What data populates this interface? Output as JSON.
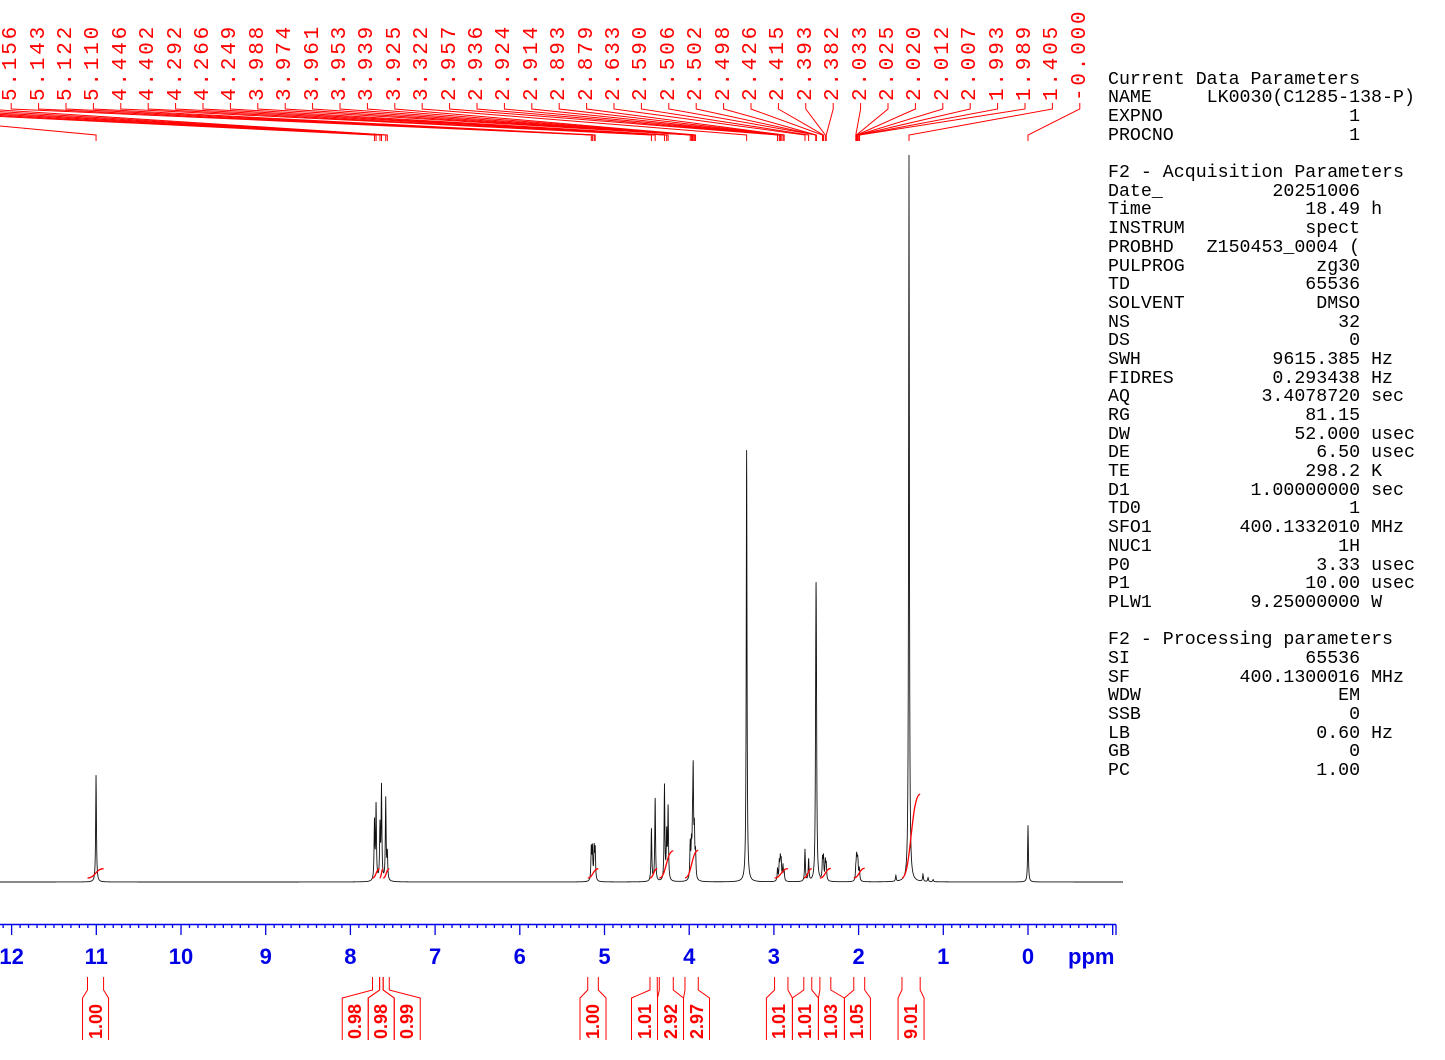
{
  "chart_data": {
    "type": "line",
    "title": "",
    "xlabel": "ppm",
    "ylabel": "",
    "xlim": [
      12.137,
      -1.039
    ],
    "x_reversed": true,
    "grid": false,
    "legend": null,
    "colors": {
      "trace": "#111111",
      "annotation": "#ff0000",
      "axis": "#0000e6"
    },
    "axis": {
      "ticks": [
        "12",
        "11",
        "10",
        "9",
        "8",
        "7",
        "6",
        "5",
        "4",
        "3",
        "2",
        "1",
        "0"
      ],
      "tick_values": [
        12,
        11,
        10,
        9,
        8,
        7,
        6,
        5,
        4,
        3,
        2,
        1,
        0
      ],
      "unit_label": "ppm"
    },
    "peaks": [
      {
        "ppm": 11.003,
        "intensity": 14.7
      },
      {
        "ppm": 7.716,
        "intensity": 8.0
      },
      {
        "ppm": 7.697,
        "intensity": 10.2
      },
      {
        "ppm": 7.651,
        "intensity": 7.2
      },
      {
        "ppm": 7.633,
        "intensity": 12.8
      },
      {
        "ppm": 7.583,
        "intensity": 11.3
      },
      {
        "ppm": 7.564,
        "intensity": 3.6
      },
      {
        "ppm": 5.156,
        "intensity": 4.4
      },
      {
        "ppm": 5.143,
        "intensity": 4.3
      },
      {
        "ppm": 5.122,
        "intensity": 4.3
      },
      {
        "ppm": 5.11,
        "intensity": 4.2
      },
      {
        "ppm": 4.446,
        "intensity": 7.2
      },
      {
        "ppm": 4.402,
        "intensity": 11.4
      },
      {
        "ppm": 4.292,
        "intensity": 13.1
      },
      {
        "ppm": 4.266,
        "intensity": 6.2
      },
      {
        "ppm": 4.249,
        "intensity": 9.9
      },
      {
        "ppm": 3.988,
        "intensity": 4.8
      },
      {
        "ppm": 3.974,
        "intensity": 4.1
      },
      {
        "ppm": 3.961,
        "intensity": 5.5
      },
      {
        "ppm": 3.953,
        "intensity": 13.8
      },
      {
        "ppm": 3.939,
        "intensity": 6.2
      },
      {
        "ppm": 3.925,
        "intensity": 3.4
      },
      {
        "ppm": 3.322,
        "intensity": 59.4
      },
      {
        "ppm": 2.957,
        "intensity": 1.7
      },
      {
        "ppm": 2.936,
        "intensity": 2.5
      },
      {
        "ppm": 2.924,
        "intensity": 2.8
      },
      {
        "ppm": 2.914,
        "intensity": 2.6
      },
      {
        "ppm": 2.893,
        "intensity": 2.1
      },
      {
        "ppm": 2.879,
        "intensity": 1.2
      },
      {
        "ppm": 2.633,
        "intensity": 4.4
      },
      {
        "ppm": 2.59,
        "intensity": 3.0
      },
      {
        "ppm": 2.506,
        "intensity": 12.6
      },
      {
        "ppm": 2.502,
        "intensity": 25.1
      },
      {
        "ppm": 2.498,
        "intensity": 12.6
      },
      {
        "ppm": 2.426,
        "intensity": 2.8
      },
      {
        "ppm": 2.415,
        "intensity": 3.0
      },
      {
        "ppm": 2.393,
        "intensity": 2.6
      },
      {
        "ppm": 2.382,
        "intensity": 2.2
      },
      {
        "ppm": 2.033,
        "intensity": 1.4
      },
      {
        "ppm": 2.025,
        "intensity": 2.2
      },
      {
        "ppm": 2.02,
        "intensity": 1.7
      },
      {
        "ppm": 2.012,
        "intensity": 1.9
      },
      {
        "ppm": 2.007,
        "intensity": 1.5
      },
      {
        "ppm": 1.993,
        "intensity": 1.0
      },
      {
        "ppm": 1.989,
        "intensity": 0.8
      },
      {
        "ppm": 1.405,
        "intensity": 100.0
      },
      {
        "ppm": 0.0,
        "intensity": 7.8
      }
    ],
    "minor_peaks": [
      {
        "ppm": 1.56,
        "intensity": 0.8
      },
      {
        "ppm": 1.24,
        "intensity": 1.0
      },
      {
        "ppm": 1.18,
        "intensity": 0.55
      },
      {
        "ppm": 1.12,
        "intensity": 0.3
      }
    ],
    "peak_labels": [
      {
        "label": "5.156",
        "ppm": 5.156
      },
      {
        "label": "5.143",
        "ppm": 5.143
      },
      {
        "label": "5.122",
        "ppm": 5.122
      },
      {
        "label": "5.110",
        "ppm": 5.11
      },
      {
        "label": "4.446",
        "ppm": 4.446
      },
      {
        "label": "4.402",
        "ppm": 4.402
      },
      {
        "label": "4.292",
        "ppm": 4.292
      },
      {
        "label": "4.266",
        "ppm": 4.266
      },
      {
        "label": "4.249",
        "ppm": 4.249
      },
      {
        "label": "3.988",
        "ppm": 3.988
      },
      {
        "label": "3.974",
        "ppm": 3.974
      },
      {
        "label": "3.961",
        "ppm": 3.961
      },
      {
        "label": "3.953",
        "ppm": 3.953
      },
      {
        "label": "3.939",
        "ppm": 3.939
      },
      {
        "label": "3.925",
        "ppm": 3.925
      },
      {
        "label": "3.322",
        "ppm": 3.322
      },
      {
        "label": "2.957",
        "ppm": 2.957
      },
      {
        "label": "2.936",
        "ppm": 2.936
      },
      {
        "label": "2.924",
        "ppm": 2.924
      },
      {
        "label": "2.914",
        "ppm": 2.914
      },
      {
        "label": "2.893",
        "ppm": 2.893
      },
      {
        "label": "2.879",
        "ppm": 2.879
      },
      {
        "label": "2.633",
        "ppm": 2.633
      },
      {
        "label": "2.590",
        "ppm": 2.59
      },
      {
        "label": "2.506",
        "ppm": 2.506
      },
      {
        "label": "2.502",
        "ppm": 2.502
      },
      {
        "label": "2.498",
        "ppm": 2.498
      },
      {
        "label": "2.426",
        "ppm": 2.426
      },
      {
        "label": "2.415",
        "ppm": 2.415
      },
      {
        "label": "2.393",
        "ppm": 2.393
      },
      {
        "label": "2.382",
        "ppm": 2.382
      },
      {
        "label": "2.033",
        "ppm": 2.033
      },
      {
        "label": "2.025",
        "ppm": 2.025
      },
      {
        "label": "2.020",
        "ppm": 2.02
      },
      {
        "label": "2.012",
        "ppm": 2.012
      },
      {
        "label": "2.007",
        "ppm": 2.007
      },
      {
        "label": "1.993",
        "ppm": 1.993
      },
      {
        "label": "1.989",
        "ppm": 1.989
      },
      {
        "label": "1.405",
        "ppm": 1.405
      },
      {
        "label": "-0.000",
        "ppm": 0.0
      }
    ],
    "offscreen_label_connectors_ppm": [
      11.003,
      7.716,
      7.697,
      7.651,
      7.633,
      7.583,
      7.564
    ],
    "integrals": [
      {
        "from": 11.104,
        "to": 10.914,
        "value": "1.00"
      },
      {
        "from": 7.739,
        "to": 7.655,
        "value": "0.98"
      },
      {
        "from": 7.655,
        "to": 7.613,
        "value": "0.98"
      },
      {
        "from": 7.613,
        "to": 7.541,
        "value": "0.99"
      },
      {
        "from": 5.198,
        "to": 5.073,
        "value": "1.00"
      },
      {
        "from": 4.463,
        "to": 4.377,
        "value": "1.01"
      },
      {
        "from": 4.353,
        "to": 4.188,
        "value": "2.92"
      },
      {
        "from": 4.05,
        "to": 3.893,
        "value": "2.97"
      },
      {
        "from": 2.992,
        "to": 2.834,
        "value": "1.01"
      },
      {
        "from": 2.647,
        "to": 2.553,
        "value": "1.01"
      },
      {
        "from": 2.457,
        "to": 2.328,
        "value": "1.03"
      },
      {
        "from": 2.057,
        "to": 1.928,
        "value": "1.05"
      },
      {
        "from": 1.488,
        "to": 1.273,
        "value": "9.01"
      }
    ]
  },
  "params": {
    "sections": [
      {
        "title": "Current Data Parameters",
        "rows": [
          {
            "name": "NAME",
            "value": "LK0030(C1285-138-P)",
            "unit": ""
          },
          {
            "name": "EXPNO",
            "value": "1",
            "unit": ""
          },
          {
            "name": "PROCNO",
            "value": "1",
            "unit": ""
          }
        ]
      },
      {
        "title": "F2 - Acquisition Parameters",
        "rows": [
          {
            "name": "Date_",
            "value": "20251006",
            "unit": ""
          },
          {
            "name": "Time",
            "value": "18.49",
            "unit": "h"
          },
          {
            "name": "INSTRUM",
            "value": "spect",
            "unit": ""
          },
          {
            "name": "PROBHD",
            "value": "Z150453_0004 (",
            "unit": ""
          },
          {
            "name": "PULPROG",
            "value": "zg30",
            "unit": ""
          },
          {
            "name": "TD",
            "value": "65536",
            "unit": ""
          },
          {
            "name": "SOLVENT",
            "value": "DMSO",
            "unit": ""
          },
          {
            "name": "NS",
            "value": "32",
            "unit": ""
          },
          {
            "name": "DS",
            "value": "0",
            "unit": ""
          },
          {
            "name": "SWH",
            "value": "9615.385",
            "unit": "Hz"
          },
          {
            "name": "FIDRES",
            "value": "0.293438",
            "unit": "Hz"
          },
          {
            "name": "AQ",
            "value": "3.4078720",
            "unit": "sec"
          },
          {
            "name": "RG",
            "value": "81.15",
            "unit": ""
          },
          {
            "name": "DW",
            "value": "52.000",
            "unit": "usec"
          },
          {
            "name": "DE",
            "value": "6.50",
            "unit": "usec"
          },
          {
            "name": "TE",
            "value": "298.2",
            "unit": "K"
          },
          {
            "name": "D1",
            "value": "1.00000000",
            "unit": "sec"
          },
          {
            "name": "TD0",
            "value": "1",
            "unit": ""
          },
          {
            "name": "SFO1",
            "value": "400.1332010",
            "unit": "MHz"
          },
          {
            "name": "NUC1",
            "value": "1H",
            "unit": ""
          },
          {
            "name": "P0",
            "value": "3.33",
            "unit": "usec"
          },
          {
            "name": "P1",
            "value": "10.00",
            "unit": "usec"
          },
          {
            "name": "PLW1",
            "value": "9.25000000",
            "unit": "W"
          }
        ]
      },
      {
        "title": "F2 - Processing parameters",
        "rows": [
          {
            "name": "SI",
            "value": "65536",
            "unit": ""
          },
          {
            "name": "SF",
            "value": "400.1300016",
            "unit": "MHz"
          },
          {
            "name": "WDW",
            "value": "EM",
            "unit": ""
          },
          {
            "name": "SSB",
            "value": "0",
            "unit": ""
          },
          {
            "name": "LB",
            "value": "0.60",
            "unit": "Hz"
          },
          {
            "name": "GB",
            "value": "0",
            "unit": ""
          },
          {
            "name": "PC",
            "value": "1.00",
            "unit": ""
          }
        ]
      }
    ]
  }
}
